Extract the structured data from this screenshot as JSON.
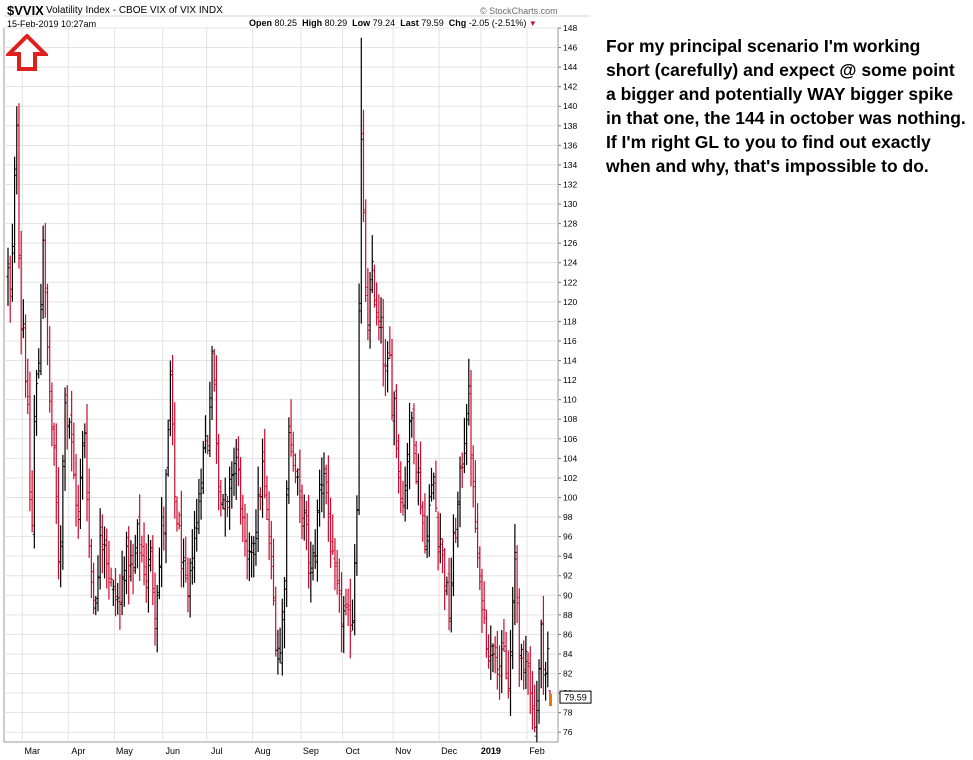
{
  "chart_header": {
    "symbol": "$VVIX",
    "description": "Volatility Index - CBOE VIX of VIX  INDX",
    "datetime": "15-Feb-2019 10:27am",
    "source": "© StockCharts.com",
    "open_label": "Open",
    "open": "80.25",
    "high_label": "High",
    "high": "80.29",
    "low_label": "Low",
    "low": "79.24",
    "last_label": "Last",
    "last": "79.59",
    "chg_label": "Chg",
    "chg": "-2.05 (-2.51%)"
  },
  "commentary": {
    "paragraph1": "For my principal scenario I'm working short (carefully) and expect @ some point a bigger and potentially WAY bigger spike in that one, the 144 in october was nothing.",
    "paragraph2": "If I'm right GL to you to find out exactly when and why, that's impossible to do."
  },
  "colors": {
    "up": "#000000",
    "down": "#cc0a2e",
    "arrow": "#e0201d",
    "last_marker": "#e07a0c"
  },
  "icons": {
    "annotation_arrow": "up-arrow-icon"
  },
  "chart_data": {
    "type": "ohlc-bar",
    "ylim": [
      75,
      148
    ],
    "yticks": [
      76,
      78,
      80,
      82,
      84,
      86,
      88,
      90,
      92,
      94,
      96,
      98,
      100,
      102,
      104,
      106,
      108,
      110,
      112,
      114,
      116,
      118,
      120,
      122,
      124,
      126,
      128,
      130,
      132,
      134,
      136,
      138,
      140,
      142,
      144,
      146,
      148
    ],
    "y_axis_side": "right",
    "x_tick_labels": [
      "Mar",
      "Apr",
      "May",
      "Jun",
      "Jul",
      "Aug",
      "Sep",
      "Oct",
      "Nov",
      "Dec",
      "2019",
      "Feb"
    ],
    "x_tick_label_bold": [
      false,
      false,
      false,
      false,
      false,
      false,
      false,
      false,
      false,
      false,
      true,
      false
    ],
    "last_value_label": "79.59",
    "last_value": 79.59,
    "grid": true,
    "legend": "none",
    "months": [
      {
        "name": "Feb-2018",
        "days": 7,
        "start": 123,
        "keys": [
          [
            0,
            123
          ],
          [
            1,
            120
          ],
          [
            2,
            125
          ],
          [
            3,
            132
          ],
          [
            4,
            139
          ],
          [
            5,
            126
          ],
          [
            6,
            118
          ]
        ]
      },
      {
        "name": "Mar-2018",
        "days": 21,
        "start": 118,
        "keys": [
          [
            0,
            118
          ],
          [
            2,
            108
          ],
          [
            3,
            100
          ],
          [
            4,
            97
          ],
          [
            5,
            108
          ],
          [
            7,
            114
          ],
          [
            9,
            127
          ],
          [
            10,
            120
          ],
          [
            12,
            110
          ],
          [
            14,
            104
          ],
          [
            16,
            94
          ],
          [
            17,
            96
          ],
          [
            19,
            111
          ],
          [
            20,
            108
          ]
        ]
      },
      {
        "name": "Apr-2018",
        "days": 21,
        "start": 108,
        "keys": [
          [
            0,
            108
          ],
          [
            2,
            102
          ],
          [
            4,
            98
          ],
          [
            6,
            105
          ],
          [
            7,
            107
          ],
          [
            9,
            95
          ],
          [
            11,
            90
          ],
          [
            13,
            91
          ],
          [
            14,
            97
          ],
          [
            16,
            96
          ],
          [
            18,
            92
          ],
          [
            20,
            90
          ]
        ]
      },
      {
        "name": "May-2018",
        "days": 22,
        "start": 90,
        "keys": [
          [
            0,
            90
          ],
          [
            2,
            89
          ],
          [
            4,
            94
          ],
          [
            6,
            93
          ],
          [
            8,
            92
          ],
          [
            10,
            96
          ],
          [
            12,
            94
          ],
          [
            14,
            92
          ],
          [
            16,
            94
          ],
          [
            18,
            89
          ],
          [
            20,
            93
          ],
          [
            21,
            97
          ]
        ]
      },
      {
        "name": "Jun-2018",
        "days": 20,
        "start": 97,
        "keys": [
          [
            0,
            97
          ],
          [
            2,
            106
          ],
          [
            3,
            112
          ],
          [
            5,
            100
          ],
          [
            7,
            96
          ],
          [
            9,
            92
          ],
          [
            11,
            89
          ],
          [
            13,
            95
          ],
          [
            15,
            97
          ],
          [
            17,
            103
          ],
          [
            19,
            106
          ]
        ]
      },
      {
        "name": "Jul-2018",
        "days": 21,
        "start": 106,
        "keys": [
          [
            0,
            106
          ],
          [
            2,
            115
          ],
          [
            3,
            111
          ],
          [
            5,
            102
          ],
          [
            7,
            100
          ],
          [
            9,
            98
          ],
          [
            11,
            103
          ],
          [
            13,
            104
          ],
          [
            15,
            100
          ],
          [
            17,
            94
          ],
          [
            19,
            93
          ],
          [
            20,
            96
          ]
        ]
      },
      {
        "name": "Aug-2018",
        "days": 22,
        "start": 96,
        "keys": [
          [
            0,
            96
          ],
          [
            2,
            99
          ],
          [
            4,
            103
          ],
          [
            6,
            98
          ],
          [
            8,
            93
          ],
          [
            10,
            86
          ],
          [
            12,
            84
          ],
          [
            14,
            92
          ],
          [
            16,
            108
          ],
          [
            18,
            104
          ],
          [
            20,
            101
          ],
          [
            21,
            99
          ]
        ]
      },
      {
        "name": "Sep-2018",
        "days": 19,
        "start": 99,
        "keys": [
          [
            0,
            99
          ],
          [
            2,
            96
          ],
          [
            4,
            92
          ],
          [
            6,
            95
          ],
          [
            8,
            101
          ],
          [
            10,
            103
          ],
          [
            12,
            98
          ],
          [
            14,
            93
          ],
          [
            16,
            90
          ],
          [
            18,
            88
          ]
        ]
      },
      {
        "name": "Oct-2018",
        "days": 23,
        "start": 88,
        "keys": [
          [
            0,
            88
          ],
          [
            2,
            87
          ],
          [
            4,
            88
          ],
          [
            6,
            100
          ],
          [
            7,
            120
          ],
          [
            8,
            136
          ],
          [
            9,
            128
          ],
          [
            11,
            116
          ],
          [
            13,
            124
          ],
          [
            15,
            118
          ],
          [
            17,
            117
          ],
          [
            19,
            112
          ],
          [
            21,
            114
          ],
          [
            22,
            110
          ]
        ]
      },
      {
        "name": "Nov-2018",
        "days": 21,
        "start": 110,
        "keys": [
          [
            0,
            110
          ],
          [
            2,
            103
          ],
          [
            4,
            99
          ],
          [
            6,
            105
          ],
          [
            8,
            108
          ],
          [
            10,
            104
          ],
          [
            12,
            100
          ],
          [
            14,
            95
          ],
          [
            16,
            99
          ],
          [
            18,
            102
          ],
          [
            20,
            96
          ]
        ]
      },
      {
        "name": "Dec-2018",
        "days": 19,
        "start": 96,
        "keys": [
          [
            0,
            96
          ],
          [
            2,
            92
          ],
          [
            4,
            88
          ],
          [
            6,
            95
          ],
          [
            8,
            99
          ],
          [
            10,
            104
          ],
          [
            12,
            109
          ],
          [
            13,
            110
          ],
          [
            15,
            100
          ],
          [
            17,
            94
          ],
          [
            18,
            90
          ]
        ]
      },
      {
        "name": "Jan-2019",
        "days": 21,
        "start": 90,
        "keys": [
          [
            0,
            90
          ],
          [
            2,
            86
          ],
          [
            4,
            84
          ],
          [
            6,
            86
          ],
          [
            8,
            82
          ],
          [
            10,
            84
          ],
          [
            12,
            80
          ],
          [
            14,
            88
          ],
          [
            15,
            94
          ],
          [
            17,
            85
          ],
          [
            19,
            81
          ],
          [
            20,
            84
          ]
        ]
      },
      {
        "name": "Feb-2019",
        "days": 11,
        "start": 84,
        "keys": [
          [
            0,
            84
          ],
          [
            2,
            78
          ],
          [
            3,
            77
          ],
          [
            5,
            82
          ],
          [
            6,
            86
          ],
          [
            8,
            82
          ],
          [
            9,
            84
          ],
          [
            10,
            80
          ]
        ]
      }
    ],
    "extremes": [
      {
        "month": "Feb-2018",
        "day": 4,
        "high": 140
      },
      {
        "month": "Oct-2018",
        "day": 8,
        "high": 147
      },
      {
        "month": "Feb-2019",
        "day": 3,
        "low": 76
      }
    ]
  }
}
